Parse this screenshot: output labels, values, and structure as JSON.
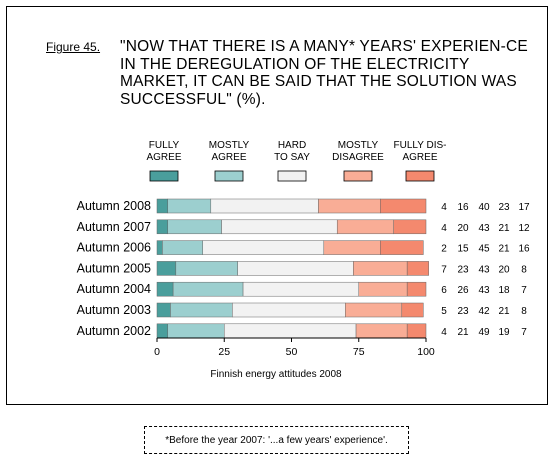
{
  "figure_label": "Figure 45.",
  "title": "\"NOW THAT THERE IS A MANY* YEARS' EXPERIEN-CE IN THE DEREGULATION OF THE ELECTRICITY MARKET, IT CAN BE SAID THAT THE SOLUTION WAS SUCCESSFUL\" (%).",
  "source": "Finnish energy attitudes 2008",
  "footnote": "*Before the year 2007: '...a few years' experience'.",
  "chart_data": {
    "type": "bar",
    "orientation": "horizontal",
    "stacked": true,
    "categories": [
      "Autumn 2008",
      "Autumn 2007",
      "Autumn 2006",
      "Autumn 2005",
      "Autumn 2004",
      "Autumn 2003",
      "Autumn 2002"
    ],
    "series": [
      {
        "name": "FULLY AGREE",
        "legend_lines": [
          "FULLY",
          "AGREE"
        ],
        "color": "#4a9e9c",
        "values": [
          4,
          4,
          2,
          7,
          6,
          5,
          4
        ]
      },
      {
        "name": "MOSTLY AGREE",
        "legend_lines": [
          "MOSTLY",
          "AGREE"
        ],
        "color": "#9ccfcf",
        "values": [
          16,
          20,
          15,
          23,
          26,
          23,
          21
        ]
      },
      {
        "name": "HARD TO SAY",
        "legend_lines": [
          "HARD",
          "TO SAY"
        ],
        "color": "#f2f2f2",
        "values": [
          40,
          43,
          45,
          43,
          43,
          42,
          49
        ]
      },
      {
        "name": "MOSTLY DISAGREE",
        "legend_lines": [
          "MOSTLY",
          "DISAGREE"
        ],
        "color": "#f9ad96",
        "values": [
          23,
          21,
          21,
          20,
          18,
          21,
          19
        ]
      },
      {
        "name": "FULLY DISAGREE",
        "legend_lines": [
          "FULLY DIS-",
          "AGREE"
        ],
        "color": "#f4896e",
        "values": [
          17,
          12,
          16,
          8,
          7,
          8,
          7
        ]
      }
    ],
    "xlim": [
      0,
      100
    ],
    "xticks": [
      0,
      25,
      50,
      75,
      100
    ],
    "legend_position": "top"
  }
}
